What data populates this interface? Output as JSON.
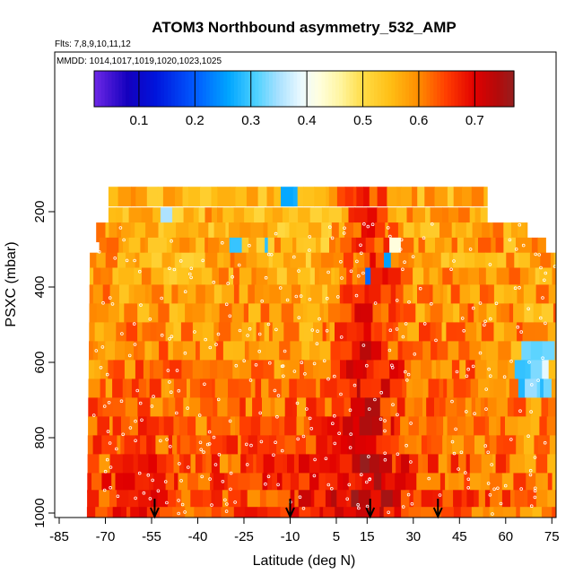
{
  "chart_data": {
    "type": "heatmap",
    "title": "ATOM3 Northbound asymmetry_532_AMP",
    "flights_note": "Flts: 7,8,9,10,11,12",
    "dates_note": "MMDD: 1014,1017,1019,1020,1023,1025",
    "xlabel": "Latitude (deg N)",
    "ylabel": "PSXC (mbar)",
    "xlim": [
      -85,
      80
    ],
    "ylim": [
      1000,
      200
    ],
    "x_ticks": [
      -85,
      -70,
      -55,
      -40,
      -25,
      -10,
      5,
      15,
      30,
      45,
      60,
      75
    ],
    "y_ticks": [
      200,
      400,
      600,
      800,
      1000
    ],
    "colorbar": {
      "range": [
        0.02,
        0.77
      ],
      "ticks": [
        0.1,
        0.2,
        0.3,
        0.4,
        0.5,
        0.6,
        0.7
      ]
    },
    "arrow_latitudes": [
      -54,
      -10,
      16,
      38
    ],
    "pressure_levels": [
      160,
      215,
      255,
      295,
      335,
      375,
      420,
      470,
      520,
      570,
      620,
      670,
      720,
      770,
      820,
      870,
      920,
      965,
      1010
    ],
    "value_profile": {
      "latitudes": [
        -75,
        -60,
        -45,
        -30,
        -15,
        0,
        10,
        15,
        20,
        30,
        40,
        50,
        60,
        70,
        78
      ],
      "lower_values": [
        0.64,
        0.66,
        0.65,
        0.64,
        0.66,
        0.67,
        0.72,
        0.74,
        0.71,
        0.66,
        0.64,
        0.63,
        0.62,
        0.6,
        0.6
      ],
      "upper_values": [
        0.58,
        0.56,
        0.55,
        0.57,
        0.56,
        0.54,
        0.62,
        0.66,
        0.63,
        0.58,
        0.57,
        0.59,
        0.58,
        0.57,
        0.58
      ]
    }
  }
}
